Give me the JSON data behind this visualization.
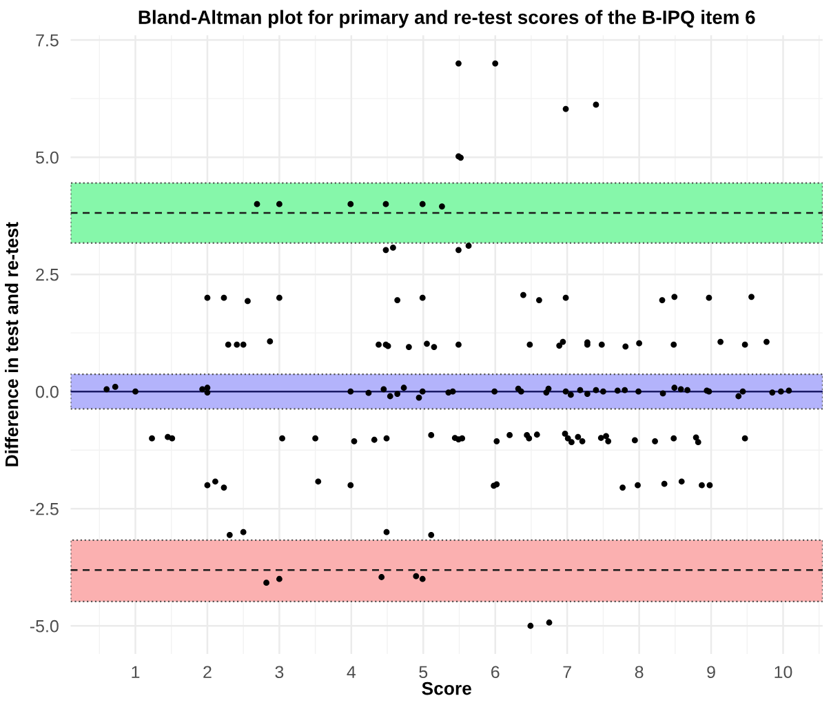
{
  "chart_data": {
    "type": "scatter",
    "title": "Bland-Altman plot for primary and re-test scores of the B-IPQ item 6",
    "xlabel": "Score",
    "ylabel": "Difference in test and re-test",
    "xlim": [
      0.1,
      10.55
    ],
    "ylim": [
      -5.6,
      7.6
    ],
    "xticks": [
      1,
      2,
      3,
      4,
      5,
      6,
      7,
      8,
      9,
      10
    ],
    "yticks": [
      {
        "value": -5,
        "label": "-5.0"
      },
      {
        "value": -2.5,
        "label": "-2.5"
      },
      {
        "value": 0,
        "label": "0.0"
      },
      {
        "value": 2.5,
        "label": "2.5"
      },
      {
        "value": 5,
        "label": "5.0"
      },
      {
        "value": 7.5,
        "label": "7.5"
      }
    ],
    "grid": true,
    "marker": "circle",
    "bands": [
      {
        "axis": "y",
        "from": 3.17,
        "to": 4.45,
        "color": "#86f7aa"
      },
      {
        "axis": "y",
        "from": -0.37,
        "to": 0.37,
        "color": "#b3b3fb"
      },
      {
        "axis": "y",
        "from": -4.48,
        "to": -3.17,
        "color": "#fbb0b0"
      }
    ],
    "ref_lines": [
      {
        "axis": "y",
        "value": 3.81,
        "line_style": "dashed",
        "color": "#1a1a1a"
      },
      {
        "axis": "y",
        "value": 0,
        "line_style": "solid",
        "color": "#1a1a66"
      },
      {
        "axis": "y",
        "value": -3.81,
        "line_style": "dashed",
        "color": "#1a1a1a"
      }
    ],
    "series": [
      {
        "color": "#000000",
        "x": [
          2.69,
          3.0,
          3.99,
          4.48,
          4.99,
          5.26,
          5.49,
          6.0,
          6.98,
          7.4,
          5.49,
          5.52,
          5.49,
          5.63,
          4.48,
          4.58,
          2.0,
          2.23,
          2.56,
          3.0,
          4.64,
          4.99,
          6.39,
          6.61,
          6.98,
          8.32,
          8.49,
          8.97,
          9.56,
          2.29,
          2.41,
          2.5,
          2.87,
          4.38,
          4.48,
          4.51,
          4.8,
          5.05,
          5.15,
          5.49,
          6.48,
          6.89,
          6.94,
          7.28,
          7.28,
          7.48,
          7.81,
          8.0,
          8.48,
          9.13,
          9.47,
          9.77,
          0.6,
          0.72,
          1.0,
          1.93,
          2.0,
          2.0,
          3.99,
          4.24,
          4.45,
          4.54,
          4.64,
          4.73,
          4.94,
          4.99,
          5.35,
          5.41,
          5.99,
          6.32,
          6.36,
          6.71,
          6.74,
          6.98,
          7.05,
          7.18,
          7.28,
          7.4,
          7.5,
          7.7,
          7.8,
          7.99,
          8.33,
          8.49,
          8.58,
          8.67,
          8.94,
          8.97,
          9.38,
          9.44,
          9.85,
          9.97,
          10.08,
          1.23,
          1.45,
          1.51,
          3.04,
          3.5,
          4.04,
          4.32,
          4.49,
          5.11,
          5.44,
          5.49,
          5.54,
          6.02,
          6.2,
          6.44,
          6.47,
          6.58,
          6.97,
          7.01,
          7.06,
          7.15,
          7.21,
          7.47,
          7.54,
          7.57,
          7.94,
          8.22,
          8.48,
          8.79,
          8.82,
          9.47,
          2.0,
          2.11,
          2.23,
          3.54,
          3.99,
          5.98,
          6.02,
          7.77,
          7.98,
          8.35,
          8.59,
          8.87,
          8.98,
          2.31,
          2.5,
          4.49,
          5.11,
          2.82,
          3.0,
          4.42,
          4.9,
          4.99,
          6.49,
          6.75
        ],
        "values": [
          4.0,
          4.0,
          4.0,
          4.0,
          4.0,
          3.95,
          7.0,
          7.0,
          6.03,
          6.12,
          5.02,
          4.99,
          3.02,
          3.11,
          3.02,
          3.07,
          2.0,
          2.0,
          1.93,
          2.0,
          1.95,
          2.0,
          2.06,
          1.95,
          2.0,
          1.95,
          2.02,
          2.0,
          2.02,
          1.0,
          1.0,
          1.0,
          1.07,
          1.0,
          1.0,
          0.97,
          0.95,
          1.02,
          0.95,
          1.0,
          1.0,
          0.98,
          1.06,
          1.05,
          1.0,
          1.0,
          0.96,
          1.03,
          1.0,
          1.06,
          1.0,
          1.06,
          0.05,
          0.1,
          0.0,
          0.05,
          0.08,
          -0.02,
          0.0,
          -0.03,
          0.05,
          -0.1,
          -0.05,
          0.08,
          -0.13,
          0.0,
          -0.02,
          0.0,
          0.0,
          0.06,
          0.0,
          -0.02,
          0.06,
          0.0,
          -0.07,
          0.03,
          -0.05,
          0.03,
          0.0,
          0.02,
          0.03,
          0.0,
          -0.04,
          0.08,
          0.05,
          0.03,
          0.02,
          0.0,
          -0.1,
          0.0,
          -0.02,
          0.0,
          0.02,
          -1.0,
          -0.97,
          -1.0,
          -1.0,
          -1.0,
          -1.06,
          -1.03,
          -1.0,
          -0.93,
          -0.99,
          -1.02,
          -1.0,
          -1.06,
          -0.93,
          -0.93,
          -1.0,
          -0.92,
          -0.9,
          -1.0,
          -1.08,
          -0.97,
          -1.06,
          -0.99,
          -0.95,
          -1.06,
          -1.04,
          -1.06,
          -1.0,
          -0.98,
          -1.08,
          -1.0,
          -2.0,
          -1.92,
          -2.05,
          -1.92,
          -2.0,
          -2.01,
          -1.98,
          -2.05,
          -2.0,
          -1.97,
          -1.92,
          -2.0,
          -2.0,
          -3.06,
          -3.0,
          -3.0,
          -3.06,
          -4.08,
          -4.0,
          -3.96,
          -3.94,
          -4.0,
          -5.0,
          -4.93
        ]
      }
    ]
  }
}
